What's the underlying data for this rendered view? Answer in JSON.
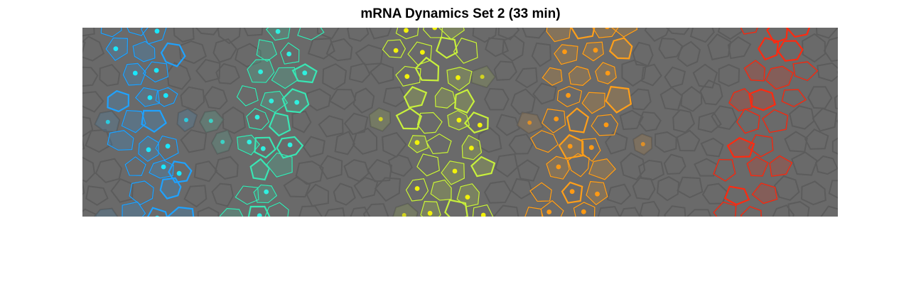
{
  "figure": {
    "title": "mRNA Dynamics Set 2 (33 min)"
  },
  "colors": {
    "background": "#6a6a6a",
    "cell_edges": "#5c5c5c",
    "stripes": [
      "#1fa2ff",
      "#39e6b4",
      "#c8f03c",
      "#ff9f1a",
      "#ff2a10"
    ],
    "spots": [
      "#19e8ff",
      "#2ff0e0",
      "#f2f20a",
      "#ff9a14",
      "#ff2a10"
    ]
  },
  "icons": {
    "cells": "voronoi-cell-outline",
    "spots": "transcription-spot-dot"
  }
}
